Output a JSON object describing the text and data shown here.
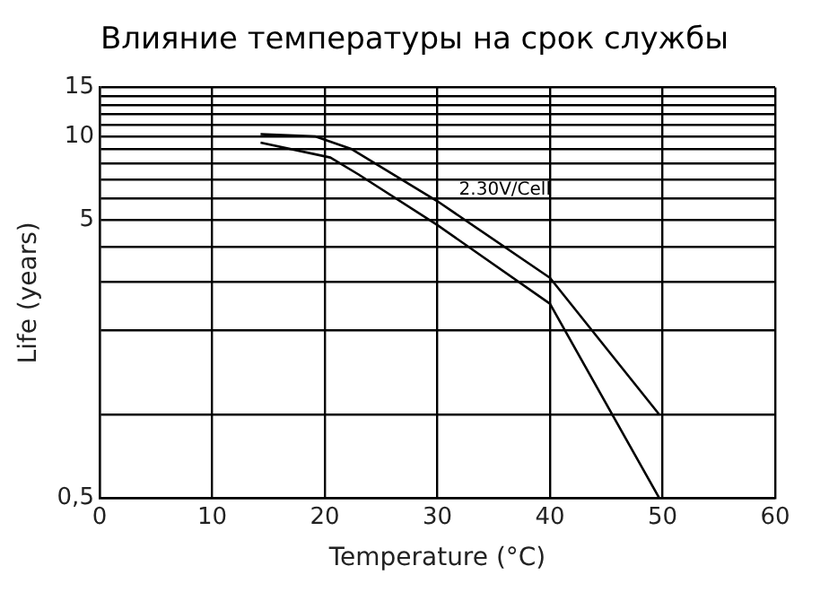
{
  "chart_data": {
    "type": "line",
    "title": "Влияние температуры на срок службы",
    "xlabel": "Temperature (°C)",
    "ylabel": "Life (years)",
    "series": [
      {
        "color": "#000000",
        "x": [
          14.3,
          19.2,
          22.4,
          30,
          40,
          49.7
        ],
        "values": [
          10.2,
          10,
          9,
          5.85,
          3.1,
          1
        ]
      },
      {
        "color": "#000000",
        "x": [
          14.3,
          20.5,
          23,
          30,
          40,
          49.7
        ],
        "values": [
          9.5,
          8.4,
          7.3,
          4.8,
          2.5,
          0.5
        ]
      }
    ],
    "annotations": [
      "2.30V/Cell"
    ],
    "xlim": [
      0,
      60
    ],
    "xticks": [
      0,
      10,
      20,
      30,
      40,
      50,
      60
    ],
    "ylim": [
      0.5,
      15
    ],
    "yticks": [
      {
        "value": 0.5,
        "label": "0,5"
      },
      {
        "value": 1,
        "label": null
      },
      {
        "value": 2,
        "label": null
      },
      {
        "value": 3,
        "label": null
      },
      {
        "value": 4,
        "label": null
      },
      5,
      {
        "value": 6,
        "label": null
      },
      {
        "value": 7,
        "label": null
      },
      {
        "value": 8,
        "label": null
      },
      {
        "value": 9,
        "label": null
      },
      10,
      {
        "value": 11,
        "label": null
      },
      {
        "value": 12,
        "label": null
      },
      {
        "value": 13,
        "label": null
      },
      {
        "value": 14,
        "label": null
      },
      15
    ],
    "log": "y",
    "grid": true,
    "marker": "none",
    "line_style": "solid",
    "legend": false
  }
}
